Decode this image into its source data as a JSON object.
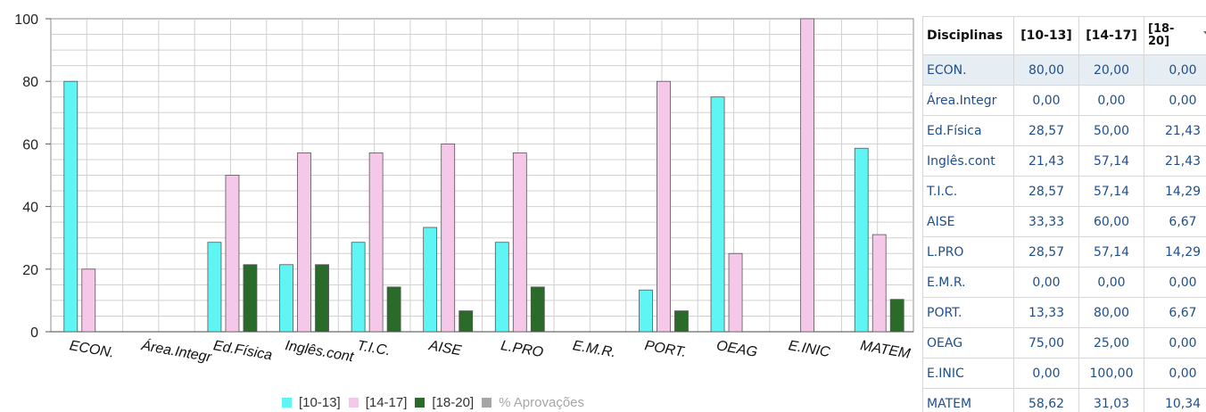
{
  "chart_data": {
    "type": "bar",
    "categories": [
      "ECON.",
      "Área.Integr",
      "Ed.Física",
      "Inglês.cont",
      "T.I.C.",
      "AISE",
      "L.PRO",
      "E.M.R.",
      "PORT.",
      "OEAG",
      "E.INIC",
      "MATEM"
    ],
    "series": [
      {
        "name": "[10-13]",
        "color": "#5ff5f5",
        "values": [
          80.0,
          0.0,
          28.57,
          21.43,
          28.57,
          33.33,
          28.57,
          0.0,
          13.33,
          75.0,
          0.0,
          58.62
        ]
      },
      {
        "name": "[14-17]",
        "color": "#f5c8ea",
        "values": [
          20.0,
          0.0,
          50.0,
          57.14,
          57.14,
          60.0,
          57.14,
          0.0,
          80.0,
          25.0,
          100.0,
          31.03
        ]
      },
      {
        "name": "[18-20]",
        "color": "#2a6b2a",
        "values": [
          0.0,
          0.0,
          21.43,
          21.43,
          14.29,
          6.67,
          14.29,
          0.0,
          6.67,
          0.0,
          0.0,
          10.34
        ]
      }
    ],
    "extra_legend": {
      "name": "% Aprovações",
      "color": "#a6a6a6"
    },
    "ylim": [
      0,
      100
    ],
    "yticks": [
      "0",
      "20",
      "40",
      "60",
      "80",
      "100"
    ],
    "grid": true,
    "legend_position": "bottom"
  },
  "table": {
    "headers": [
      "Disciplinas",
      "[10-13]",
      "[14-17]",
      "[18-20]"
    ],
    "last_header_lines": [
      "[18-",
      "20]"
    ],
    "rows": [
      [
        "ECON.",
        "80,00",
        "20,00",
        "0,00"
      ],
      [
        "Área.Integr",
        "0,00",
        "0,00",
        "0,00"
      ],
      [
        "Ed.Física",
        "28,57",
        "50,00",
        "21,43"
      ],
      [
        "Inglês.cont",
        "21,43",
        "57,14",
        "21,43"
      ],
      [
        "T.I.C.",
        "28,57",
        "57,14",
        "14,29"
      ],
      [
        "AISE",
        "33,33",
        "60,00",
        "6,67"
      ],
      [
        "L.PRO",
        "28,57",
        "57,14",
        "14,29"
      ],
      [
        "E.M.R.",
        "0,00",
        "0,00",
        "0,00"
      ],
      [
        "PORT.",
        "13,33",
        "80,00",
        "6,67"
      ],
      [
        "OEAG",
        "75,00",
        "25,00",
        "0,00"
      ],
      [
        "E.INIC",
        "0,00",
        "100,00",
        "0,00"
      ],
      [
        "MATEM",
        "58,62",
        "31,03",
        "10,34"
      ]
    ],
    "selected_row": 0,
    "sort_icon": "sort-desc-icon"
  }
}
